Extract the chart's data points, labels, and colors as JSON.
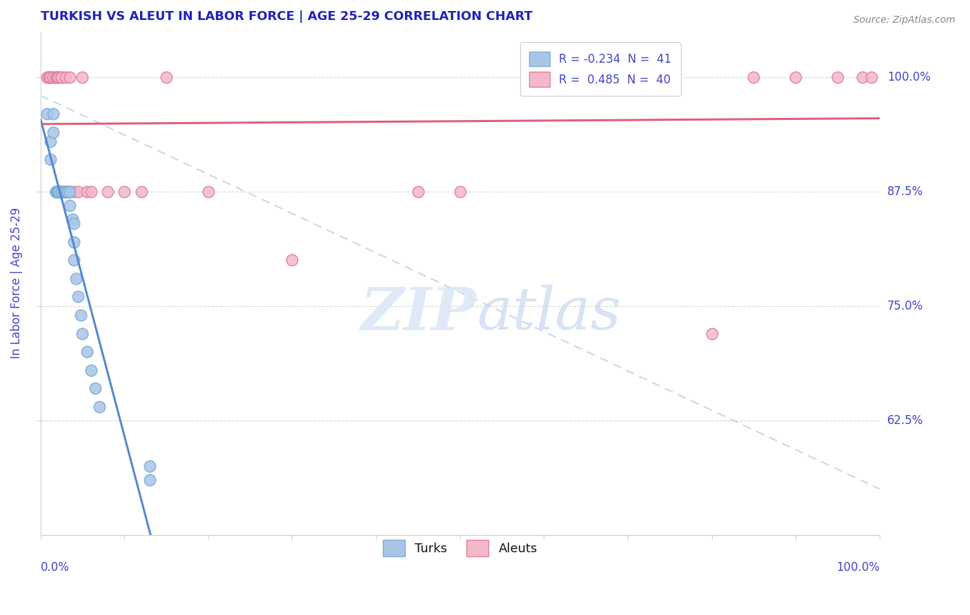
{
  "title": "TURKISH VS ALEUT IN LABOR FORCE | AGE 25-29 CORRELATION CHART",
  "source": "Source: ZipAtlas.com",
  "ylabel": "In Labor Force | Age 25-29",
  "title_color": "#2222bb",
  "axis_color": "#4444cc",
  "turk_color": "#aac4e8",
  "turk_edge": "#7bafd4",
  "aleut_color": "#f4b8c8",
  "aleut_edge": "#e080a0",
  "trend_turk_color": "#5588cc",
  "trend_aleut_color": "#dd607a",
  "ref_line_color": "#b8d0e8",
  "background_color": "#ffffff",
  "turks_x": [
    0.008,
    0.012,
    0.012,
    0.015,
    0.015,
    0.018,
    0.018,
    0.018,
    0.02,
    0.02,
    0.02,
    0.022,
    0.022,
    0.022,
    0.022,
    0.025,
    0.025,
    0.025,
    0.025,
    0.028,
    0.028,
    0.03,
    0.03,
    0.032,
    0.032,
    0.035,
    0.035,
    0.038,
    0.04,
    0.04,
    0.04,
    0.042,
    0.045,
    0.048,
    0.05,
    0.055,
    0.06,
    0.065,
    0.07,
    0.13,
    0.13
  ],
  "turks_y": [
    0.96,
    0.93,
    0.91,
    0.96,
    0.94,
    0.875,
    0.875,
    0.875,
    0.875,
    0.875,
    0.875,
    0.875,
    0.875,
    0.875,
    0.875,
    0.875,
    0.875,
    0.875,
    0.875,
    0.875,
    0.875,
    0.875,
    0.875,
    0.875,
    0.875,
    0.875,
    0.86,
    0.845,
    0.84,
    0.82,
    0.8,
    0.78,
    0.76,
    0.74,
    0.72,
    0.7,
    0.68,
    0.66,
    0.64,
    0.575,
    0.56
  ],
  "aleuts_x": [
    0.008,
    0.01,
    0.01,
    0.01,
    0.012,
    0.015,
    0.015,
    0.018,
    0.02,
    0.02,
    0.022,
    0.025,
    0.025,
    0.03,
    0.03,
    0.035,
    0.035,
    0.04,
    0.045,
    0.05,
    0.055,
    0.06,
    0.08,
    0.1,
    0.12,
    0.15,
    0.2,
    0.3,
    0.45,
    0.5,
    0.6,
    0.65,
    0.7,
    0.75,
    0.8,
    0.85,
    0.9,
    0.95,
    0.98,
    0.99
  ],
  "aleuts_y": [
    1.0,
    1.0,
    1.0,
    1.0,
    1.0,
    1.0,
    1.0,
    1.0,
    1.0,
    1.0,
    1.0,
    1.0,
    1.0,
    0.875,
    1.0,
    1.0,
    0.875,
    0.875,
    0.875,
    1.0,
    0.875,
    0.875,
    0.875,
    0.875,
    0.875,
    1.0,
    0.875,
    0.8,
    0.875,
    0.875,
    1.0,
    1.0,
    1.0,
    1.0,
    0.72,
    1.0,
    1.0,
    1.0,
    1.0,
    1.0
  ],
  "xlim": [
    0.0,
    1.0
  ],
  "ylim": [
    0.5,
    1.05
  ],
  "yticks": [
    0.625,
    0.75,
    0.875,
    1.0
  ],
  "ytick_labels": [
    "62.5%",
    "75.0%",
    "87.5%",
    "100.0%"
  ]
}
